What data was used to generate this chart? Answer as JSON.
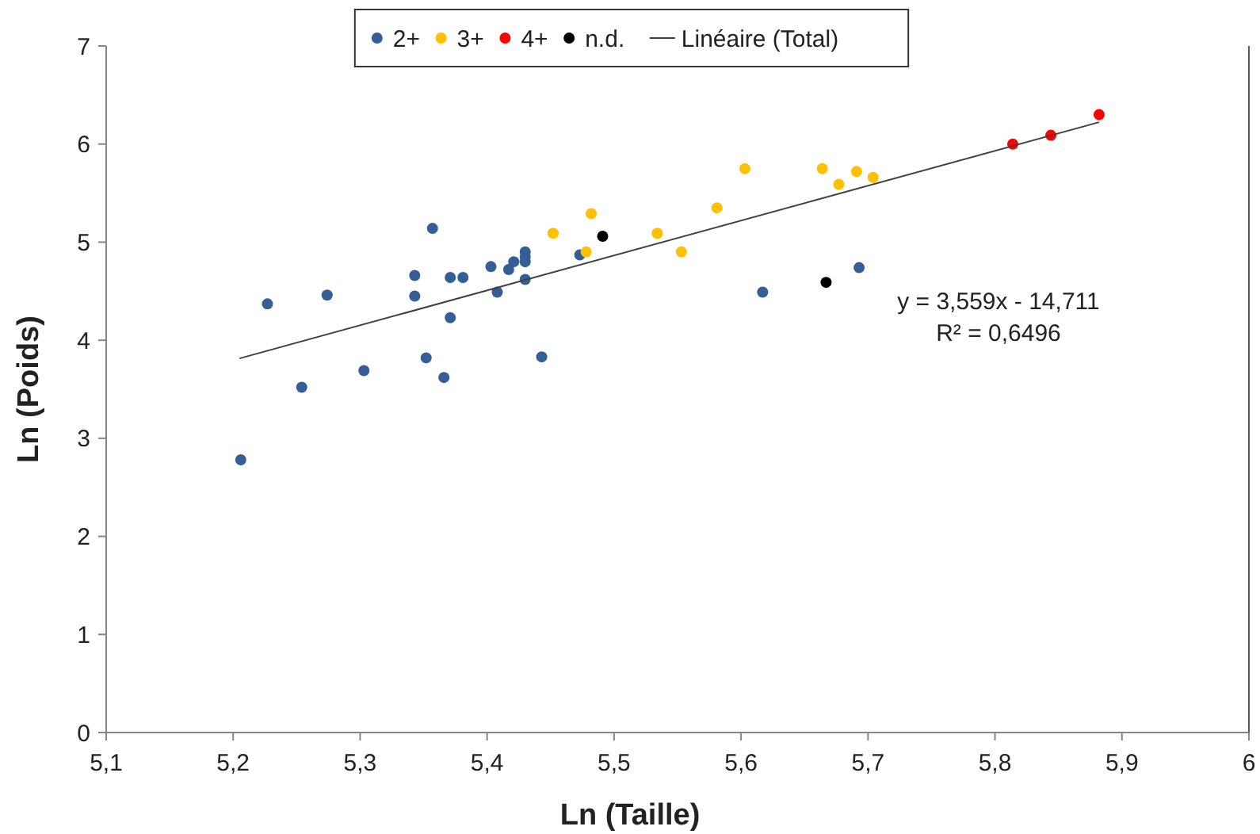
{
  "chart_data": {
    "type": "scatter",
    "xlabel": "Ln (Taille)",
    "ylabel": "Ln (Poids)",
    "xlim": [
      5.1,
      6
    ],
    "ylim": [
      0,
      7
    ],
    "xticks": [
      {
        "value": 5.1,
        "label": "5,1"
      },
      {
        "value": 5.2,
        "label": "5,2"
      },
      {
        "value": 5.3,
        "label": "5,3"
      },
      {
        "value": 5.4,
        "label": "5,4"
      },
      {
        "value": 5.5,
        "label": "5,5"
      },
      {
        "value": 5.6,
        "label": "5,6"
      },
      {
        "value": 5.7,
        "label": "5,7"
      },
      {
        "value": 5.8,
        "label": "5,8"
      },
      {
        "value": 5.9,
        "label": "5,9"
      },
      6
    ],
    "yticks": [
      0,
      1,
      2,
      3,
      4,
      5,
      6,
      7
    ],
    "grid": false,
    "legend": "top",
    "marker": "circle",
    "annotations": [
      "y = 3,559x - 14,711",
      "R² = 0,6496"
    ],
    "series": [
      {
        "name": "2+",
        "color": "#355e96",
        "x": [
          5.206,
          5.227,
          5.254,
          5.274,
          5.303,
          5.343,
          5.343,
          5.352,
          5.357,
          5.366,
          5.371,
          5.371,
          5.381,
          5.403,
          5.408,
          5.417,
          5.421,
          5.43,
          5.43,
          5.43,
          5.43,
          5.443,
          5.473,
          5.617,
          5.693
        ],
        "values": [
          2.78,
          4.37,
          3.52,
          4.46,
          3.69,
          4.66,
          4.45,
          3.82,
          5.14,
          3.62,
          4.64,
          4.23,
          4.64,
          4.75,
          4.49,
          4.72,
          4.8,
          4.9,
          4.85,
          4.8,
          4.62,
          3.83,
          4.87,
          4.49,
          4.74
        ]
      },
      {
        "name": "3+",
        "color": "#ffc000",
        "x": [
          5.452,
          5.482,
          5.478,
          5.534,
          5.553,
          5.581,
          5.603,
          5.664,
          5.677,
          5.691,
          5.704
        ],
        "values": [
          5.09,
          5.29,
          4.9,
          5.09,
          4.9,
          5.35,
          5.75,
          5.75,
          5.59,
          5.72,
          5.66
        ]
      },
      {
        "name": "4+",
        "color": "#ff0000",
        "x": [
          5.814,
          5.844,
          5.882
        ],
        "values": [
          6.0,
          6.09,
          6.3
        ]
      },
      {
        "name": "n.d.",
        "color": "#000000",
        "x": [
          5.491,
          5.667
        ],
        "values": [
          5.06,
          4.59
        ]
      },
      {
        "name": "Linéaire (Total)",
        "type": "line",
        "color": "#404040",
        "marker": "none",
        "line_style": "solid",
        "x": [
          5.205,
          5.882
        ],
        "values": [
          3.814,
          6.223
        ]
      }
    ]
  }
}
